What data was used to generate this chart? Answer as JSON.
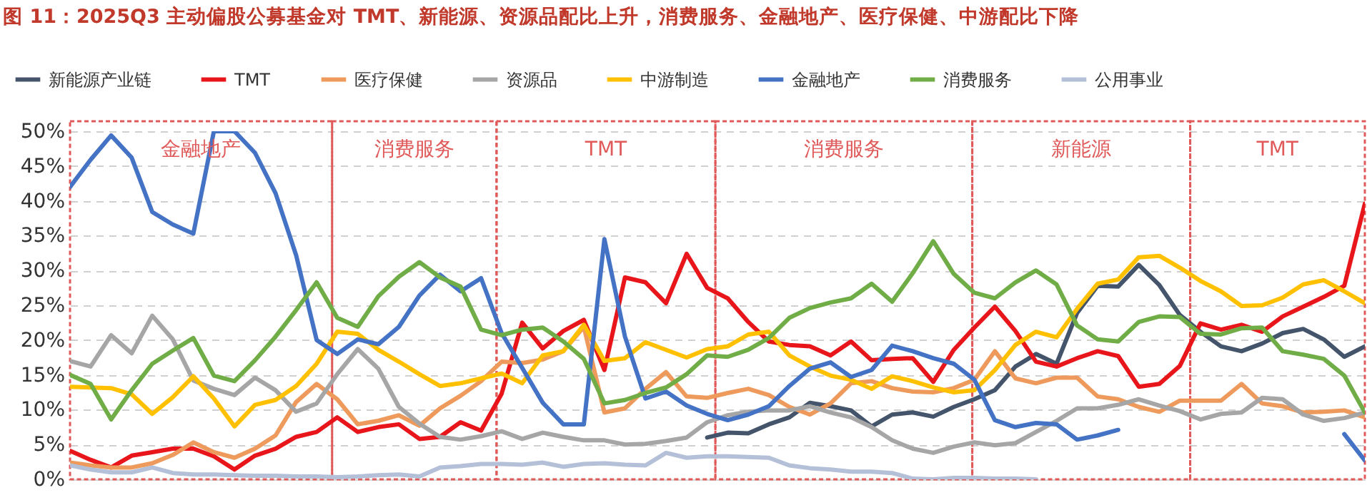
{
  "chart_data": {
    "type": "line",
    "title": "图 11：2025Q3 主动偏股公募基金对 TMT、新能源、资源品配比上升，消费服务、金融地产、医疗保健、中游配比下降",
    "categories": [
      null,
      null,
      null,
      null,
      null,
      null,
      null,
      null,
      null,
      null,
      null,
      null,
      null,
      null,
      null,
      null,
      null,
      null,
      null,
      null,
      null,
      null,
      null,
      null,
      null,
      null,
      null,
      null,
      null,
      null,
      null,
      null,
      null,
      null,
      null,
      null,
      null,
      null,
      null,
      null,
      null,
      null,
      null,
      null,
      null,
      null,
      null,
      null,
      null,
      null,
      null,
      null,
      null,
      null,
      null,
      null,
      null,
      null,
      null,
      null,
      null,
      null,
      null,
      null
    ],
    "ylim": [
      0,
      50
    ],
    "yticks": [
      {
        "value": 0,
        "label": "0%"
      },
      {
        "value": 5,
        "label": "5%"
      },
      {
        "value": 10,
        "label": "10%"
      },
      {
        "value": 15,
        "label": "15%"
      },
      {
        "value": 20,
        "label": "20%"
      },
      {
        "value": 25,
        "label": "25%"
      },
      {
        "value": 30,
        "label": "30%"
      },
      {
        "value": 35,
        "label": "35%"
      },
      {
        "value": 40,
        "label": "40%"
      },
      {
        "value": 45,
        "label": "45%"
      },
      {
        "value": 50,
        "label": "50%"
      }
    ],
    "tick_labels": "y",
    "grid": "y",
    "legend": "top",
    "line_style": "solid",
    "annotations": [
      "金融地产",
      "消费服务",
      "TMT",
      "消费服务",
      "新能源",
      "TMT"
    ],
    "series": [
      {
        "name": "新能源产业链",
        "color": "#44546a",
        "values": [
          null,
          null,
          null,
          null,
          null,
          null,
          null,
          null,
          null,
          null,
          null,
          null,
          null,
          null,
          null,
          null,
          null,
          null,
          null,
          null,
          null,
          null,
          null,
          null,
          null,
          null,
          null,
          null,
          null,
          null,
          null,
          6,
          6.7,
          6.6,
          7.9,
          8.9,
          11,
          10.5,
          9.9,
          7.6,
          9.3,
          9.6,
          9,
          10.4,
          11.5,
          12.8,
          16.2,
          18,
          16.6,
          23.9,
          27.8,
          27.7,
          30.8,
          27.9,
          23.6,
          21.2,
          19.1,
          18.4,
          19.5,
          21,
          21.6,
          20.1,
          17.6,
          19.1
        ]
      },
      {
        "name": "TMT",
        "color": "#e8161b",
        "values": [
          4.1,
          2.8,
          1.7,
          3.4,
          3.9,
          4.4,
          4.4,
          3.3,
          1.4,
          3.4,
          4.4,
          6.1,
          6.8,
          8.9,
          6.8,
          7.5,
          7.9,
          5.8,
          6.1,
          8.2,
          7,
          12.3,
          22.5,
          18.8,
          21.3,
          22.9,
          15.7,
          29,
          28.3,
          25.3,
          32.4,
          27.5,
          26,
          22.6,
          19.8,
          19.3,
          19.1,
          17.8,
          19.8,
          17.1,
          17.3,
          17.4,
          14,
          18.6,
          21.8,
          24.8,
          21.3,
          16.9,
          16.2,
          17.4,
          18.4,
          17.7,
          13.3,
          13.7,
          16.3,
          22.4,
          21.5,
          22.2,
          21.2,
          23.4,
          24.8,
          26.2,
          27.8,
          39.6
        ]
      },
      {
        "name": "医疗保健",
        "color": "#ee9a5c",
        "values": [
          2.4,
          2,
          1.7,
          1.7,
          2.3,
          3.5,
          5.3,
          3.9,
          3.1,
          4.4,
          6.3,
          11.1,
          13.7,
          11.5,
          7.9,
          8.4,
          9.2,
          7.7,
          10.2,
          12,
          14.1,
          16.9,
          16.7,
          17.2,
          18.4,
          21.9,
          9.6,
          10.2,
          13,
          15.4,
          11.9,
          11.7,
          12.4,
          13,
          12.1,
          10.4,
          9.3,
          10.9,
          13.8,
          14.1,
          13.1,
          12.6,
          12.5,
          13.1,
          14.3,
          18.4,
          14.5,
          13.8,
          14.6,
          14.6,
          11.9,
          11.5,
          10.4,
          9.7,
          11.3,
          11.3,
          11.3,
          13.7,
          10.9,
          10.5,
          9.6,
          9.7,
          9.9,
          8.9
        ]
      },
      {
        "name": "资源品",
        "color": "#a6a6a6",
        "values": [
          17,
          16.2,
          20.7,
          18.1,
          23.5,
          20.1,
          14.2,
          13,
          12.1,
          14.6,
          12.8,
          9.7,
          10.9,
          15.1,
          18.7,
          15.9,
          10.4,
          8,
          6.1,
          5.7,
          6.2,
          6.9,
          5.8,
          6.7,
          6.1,
          5.6,
          5.6,
          5,
          5.1,
          5.5,
          6,
          8.2,
          9.2,
          9.7,
          9.9,
          9.9,
          10.5,
          9.6,
          8.9,
          7.5,
          5.6,
          4.4,
          3.8,
          4.7,
          5.3,
          4.9,
          5.2,
          6.8,
          8.4,
          10.2,
          10.2,
          10.7,
          11.5,
          10.6,
          9.8,
          8.6,
          9.4,
          9.6,
          11.7,
          11.5,
          9.3,
          8.4,
          8.8,
          9.6
        ]
      },
      {
        "name": "中游制造",
        "color": "#ffc000",
        "values": [
          13.3,
          13.2,
          13.1,
          12.2,
          9.4,
          11.8,
          14.8,
          11.6,
          7.6,
          10.7,
          11.4,
          13.4,
          16.6,
          21.2,
          20.9,
          18.6,
          16.9,
          15.1,
          13.4,
          13.8,
          14.5,
          15.2,
          13.8,
          17.8,
          18.4,
          22.2,
          17,
          17.4,
          19.7,
          18.6,
          17.5,
          18.7,
          19.1,
          20.8,
          21.2,
          17.8,
          16.2,
          14.9,
          14.3,
          13,
          14.8,
          14.1,
          13.2,
          12.5,
          12.8,
          15.7,
          19.3,
          21.2,
          20.4,
          24.5,
          28.1,
          28.7,
          31.9,
          32.1,
          30.4,
          28.5,
          27,
          24.9,
          25,
          26.1,
          28,
          28.6,
          27,
          25.3
        ]
      },
      {
        "name": "金融地产",
        "color": "#4472c4",
        "values": [
          42,
          45.9,
          49.4,
          46.2,
          38.4,
          36.6,
          35.3,
          50,
          50,
          46.9,
          41.1,
          32.2,
          20,
          18,
          20.1,
          19.4,
          21.9,
          26.4,
          29.4,
          27,
          28.9,
          21,
          16,
          11,
          7.9,
          7.9,
          34.5,
          20.5,
          11.6,
          12.6,
          10.6,
          9.4,
          8.5,
          9.3,
          10.5,
          13.4,
          15.9,
          16.8,
          14.7,
          15.7,
          19.2,
          18.4,
          17.4,
          16.6,
          14.3,
          8.5,
          7.5,
          8.1,
          7.9,
          5.7,
          6.3,
          7.1,
          null,
          null,
          null,
          null,
          null,
          null,
          null,
          null,
          null,
          null,
          6.5,
          2.7
        ]
      },
      {
        "name": "消费服务",
        "color": "#70ad47",
        "values": [
          15,
          13.7,
          8.6,
          12.8,
          16.6,
          18.5,
          20.3,
          14.9,
          14.1,
          17.1,
          20.5,
          24.3,
          28.3,
          23.2,
          21.9,
          26.3,
          29.1,
          31.2,
          29,
          27.7,
          21.5,
          20.7,
          21.5,
          21.8,
          19.8,
          17.3,
          10.9,
          11.4,
          12.4,
          13.2,
          15.1,
          17.8,
          17.6,
          18.6,
          20.3,
          23.2,
          24.6,
          25.4,
          26,
          28.1,
          25.5,
          29.6,
          34.2,
          29.5,
          26.8,
          26,
          28.3,
          30,
          28,
          22.1,
          20.1,
          19.8,
          22.6,
          23.4,
          23.3,
          20.9,
          20.8,
          21.7,
          21.8,
          18.4,
          17.9,
          17.3,
          14.9,
          9.6
        ]
      },
      {
        "name": "公用事业",
        "color": "#b4c0d8",
        "values": [
          2,
          1.4,
          1,
          1,
          1.7,
          0.9,
          0.7,
          0.7,
          0.6,
          0.5,
          0.5,
          0.4,
          0.4,
          0.3,
          0.4,
          0.6,
          0.7,
          0.4,
          1.7,
          1.9,
          2.2,
          2.2,
          2.1,
          2.4,
          1.8,
          2.2,
          2.3,
          2.1,
          2,
          3.8,
          3.1,
          3.3,
          3.3,
          3.2,
          3.1,
          2,
          1.6,
          1.4,
          1.1,
          1.1,
          0.9,
          0.1,
          0,
          0.2,
          0.2,
          0.1,
          0.1,
          0,
          null,
          null,
          null,
          null,
          null,
          null,
          null,
          null,
          null,
          null,
          null,
          null,
          null,
          null,
          null,
          null
        ]
      }
    ]
  }
}
